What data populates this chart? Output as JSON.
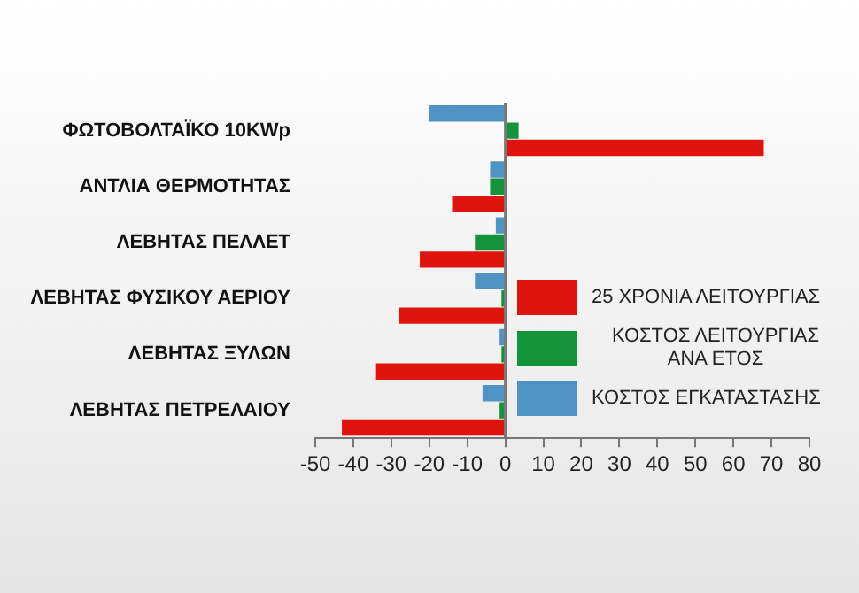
{
  "chart_data": {
    "type": "bar",
    "orientation": "horizontal",
    "categories": [
      "ΦΩΤΟΒΟΛΤΑΪΚΟ 10KWp",
      "ΑΝΤΛΙΑ ΘΕΡΜΟΤΗΤΑΣ",
      "ΛΕΒΗΤΑΣ ΠΕΛΛΕΤ",
      "ΛΕΒΗΤΑΣ ΦΥΣΙΚΟΥ ΑΕΡΙΟΥ",
      "ΛΕΒΗΤΑΣ ΞΥΛΩΝ",
      "ΛΕΒΗΤΑΣ ΠΕΤΡΕΛΑΙΟΥ"
    ],
    "series": [
      {
        "name": "ΚΟΣΤΟΣ ΕΓΚΑΤΑΣΤΑΣΗΣ",
        "color": "#4f93c4",
        "values": [
          -20,
          -4,
          -2.5,
          -8,
          -1.5,
          -6
        ]
      },
      {
        "name": "ΚΟΣΤΟΣ ΛΕΙΤΟΥΡΓΙΑΣ ΑΝΑ ΕΤΟΣ",
        "color": "#14933a",
        "values": [
          3.5,
          -4,
          -8,
          -1,
          -1,
          -1.5
        ]
      },
      {
        "name": "25 ΧΡΟΝΙΑ ΛΕΙΤΟΥΡΓΙΑΣ",
        "color": "#e0140f",
        "values": [
          68,
          -14,
          -22.5,
          -28,
          -34,
          -43
        ]
      }
    ],
    "xlim": [
      -50,
      80
    ],
    "xticks": [
      -50,
      -40,
      -30,
      -20,
      -10,
      0,
      10,
      20,
      30,
      40,
      50,
      60,
      70,
      80
    ],
    "grid": false,
    "ref_lines": [
      {
        "axis": "x",
        "value": 0,
        "color": "#777777"
      }
    ],
    "legend": "bottom right"
  }
}
